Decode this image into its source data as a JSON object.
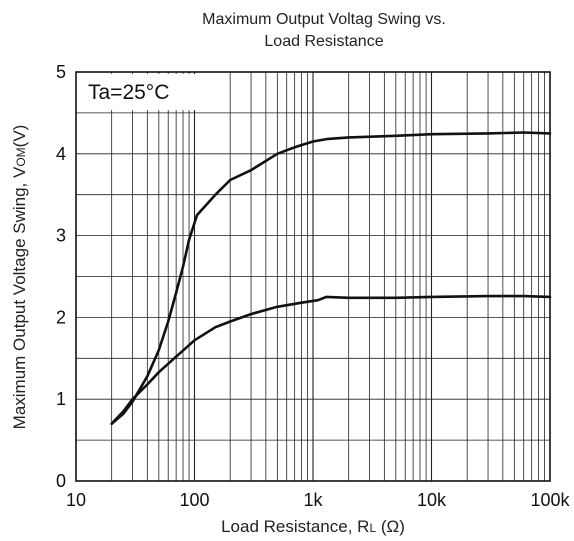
{
  "chart_data": {
    "type": "line",
    "title_line1": "Maximum Output Voltag Swing vs.",
    "title_line2": "Load Resistance",
    "xlabel": "Load Resistance, R",
    "xlabel_sub": "L",
    "xlabel_suffix": " (Ω)",
    "ylabel": "Maximum Output Voltage Swing, V",
    "ylabel_sub": "OM",
    "ylabel_suffix": "(V)",
    "annotation": "Ta=25°C",
    "x_scale": "log",
    "xlim": [
      10,
      100000
    ],
    "ylim": [
      0,
      5
    ],
    "grid": true,
    "x_ticks": [
      {
        "value": 10,
        "label": "10"
      },
      {
        "value": 100,
        "label": "100"
      },
      {
        "value": 1000,
        "label": "1k"
      },
      {
        "value": 10000,
        "label": "10k"
      },
      {
        "value": 100000,
        "label": "100k"
      }
    ],
    "y_ticks": [
      {
        "value": 0,
        "label": "0"
      },
      {
        "value": 1,
        "label": "1"
      },
      {
        "value": 2,
        "label": "2"
      },
      {
        "value": 3,
        "label": "3"
      },
      {
        "value": 4,
        "label": "4"
      },
      {
        "value": 5,
        "label": "5"
      }
    ],
    "series": [
      {
        "color": "#111111",
        "points": [
          [
            20,
            0.7
          ],
          [
            25,
            0.82
          ],
          [
            30,
            0.97
          ],
          [
            40,
            1.28
          ],
          [
            50,
            1.6
          ],
          [
            60,
            1.95
          ],
          [
            70,
            2.3
          ],
          [
            80,
            2.62
          ],
          [
            90,
            2.95
          ],
          [
            105,
            3.25
          ],
          [
            150,
            3.5
          ],
          [
            200,
            3.68
          ],
          [
            300,
            3.8
          ],
          [
            500,
            4.0
          ],
          [
            700,
            4.08
          ],
          [
            1000,
            4.15
          ],
          [
            1300,
            4.18
          ],
          [
            2000,
            4.2
          ],
          [
            5000,
            4.22
          ],
          [
            10000,
            4.24
          ],
          [
            30000,
            4.25
          ],
          [
            60000,
            4.26
          ],
          [
            100000,
            4.25
          ]
        ]
      },
      {
        "color": "#111111",
        "points": [
          [
            20,
            0.7
          ],
          [
            25,
            0.85
          ],
          [
            30,
            1.0
          ],
          [
            40,
            1.18
          ],
          [
            50,
            1.33
          ],
          [
            70,
            1.52
          ],
          [
            100,
            1.72
          ],
          [
            150,
            1.88
          ],
          [
            200,
            1.95
          ],
          [
            300,
            2.04
          ],
          [
            500,
            2.13
          ],
          [
            800,
            2.18
          ],
          [
            1100,
            2.21
          ],
          [
            1300,
            2.25
          ],
          [
            2000,
            2.24
          ],
          [
            5000,
            2.24
          ],
          [
            10000,
            2.25
          ],
          [
            30000,
            2.26
          ],
          [
            60000,
            2.26
          ],
          [
            100000,
            2.25
          ]
        ]
      }
    ]
  }
}
